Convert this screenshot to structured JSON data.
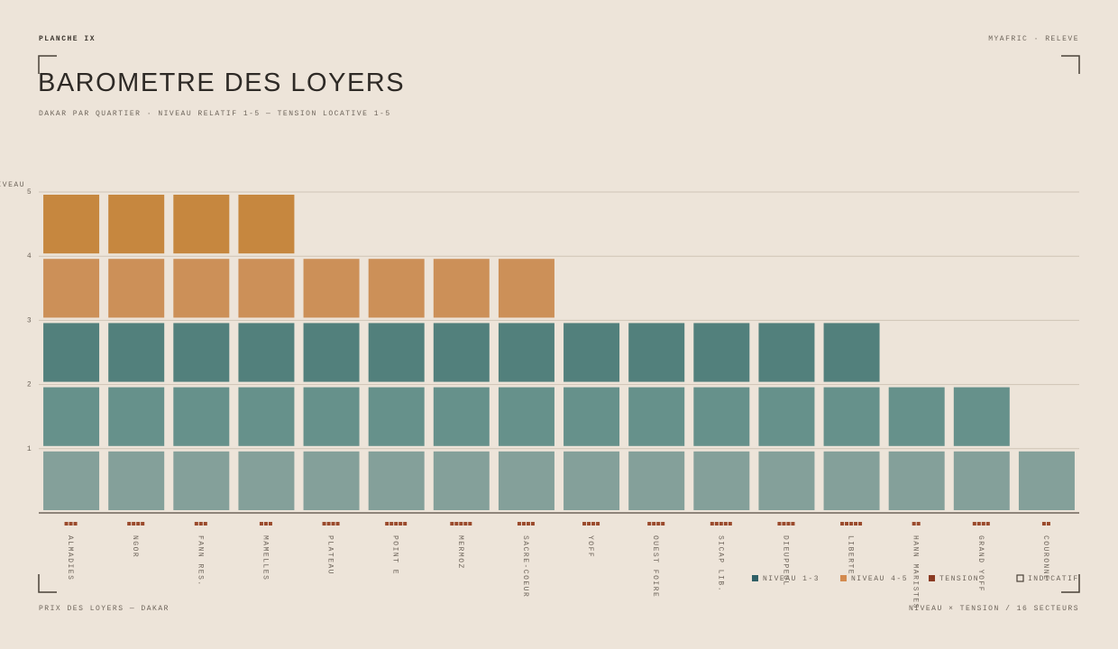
{
  "chart_data": {
    "type": "unit-stack",
    "plate": "PLANCHE IX",
    "brand": "MYAFRIC · RELEVE",
    "title": "BAROMETRE DES LOYERS",
    "subtitle": "DAKAR PAR QUARTIER · NIVEAU RELATIF 1-5 — TENSION LOCATIVE 1-5",
    "y_label": "NIVEAU",
    "categories": [
      "ALMADIES",
      "NGOR",
      "FANN RES.",
      "MAMELLES",
      "PLATEAU",
      "POINT E",
      "MERMOZ",
      "SACRE-COEUR",
      "YOFF",
      "OUEST FOIRE",
      "SICAP LIB.",
      "DIEUPPEUL",
      "LIBERTE",
      "HANN MARISTES",
      "GRAND YOFF",
      "COURONNE"
    ],
    "values": [
      5,
      5,
      5,
      5,
      4,
      4,
      4,
      4,
      3,
      3,
      3,
      3,
      3,
      2,
      2,
      1
    ],
    "tension": [
      3,
      4,
      3,
      3,
      4,
      5,
      5,
      4,
      4,
      4,
      5,
      4,
      5,
      2,
      4,
      2
    ],
    "tension_color": "#9a4a2c",
    "level_colors": [
      "#84a09a",
      "#66918b",
      "#52807c",
      "#cc9058",
      "#c6873f"
    ],
    "ylim": [
      0,
      5
    ],
    "yticks": [
      1,
      2,
      3,
      4,
      5
    ],
    "grid": true,
    "legend": [
      {
        "label": "NIVEAU 1-3",
        "color": "#2f5f66"
      },
      {
        "label": "NIVEAU 4-5",
        "color": "#d38a4f"
      },
      {
        "label": "TENSION",
        "color": "#8a3a22"
      },
      {
        "label": "INDICATIF",
        "color": "#4a4238",
        "style": "outline"
      }
    ],
    "footer_left": "PRIX DES LOYERS — DAKAR",
    "footer_right": "NIVEAU × TENSION / 16 SECTEURS"
  }
}
